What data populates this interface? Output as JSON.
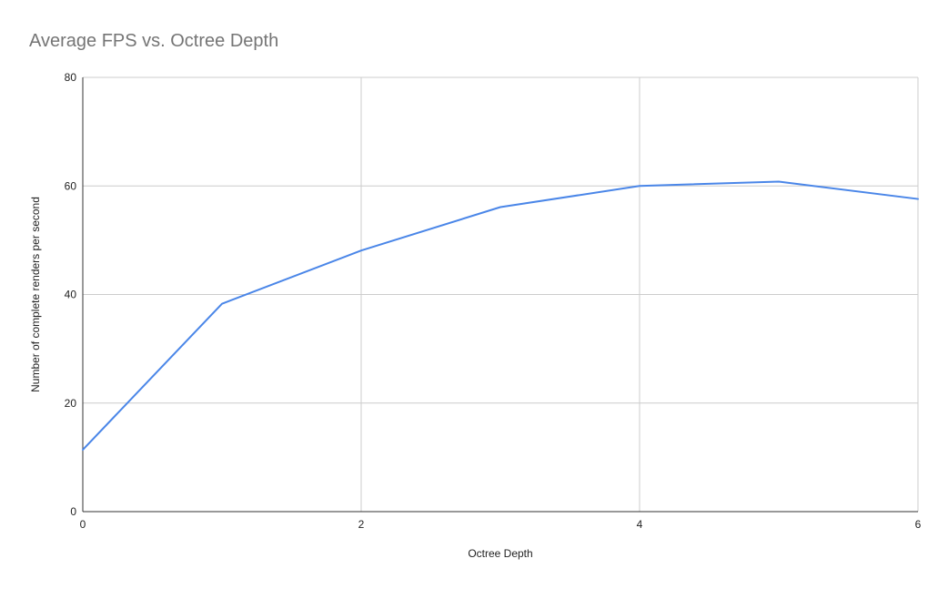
{
  "chart_data": {
    "type": "line",
    "title": "Average FPS vs. Octree Depth",
    "xlabel": "Octree Depth",
    "ylabel": "Number of complete renders per second",
    "x": [
      0,
      1,
      2,
      3,
      4,
      5,
      6
    ],
    "series": [
      {
        "values": [
          11.4,
          38.3,
          48.1,
          56.1,
          60.0,
          60.8,
          57.6
        ],
        "color": "#4a86e8"
      }
    ],
    "xlim": [
      0,
      6
    ],
    "ylim": [
      0,
      80
    ],
    "x_ticks": [
      0,
      2,
      4,
      6
    ],
    "y_ticks": [
      0,
      20,
      40,
      60,
      80
    ],
    "x_tick_labels": [
      "0",
      "2",
      "4",
      "6"
    ],
    "y_tick_labels": [
      "0",
      "20",
      "40",
      "60",
      "80"
    ],
    "grid": true,
    "legend": "none"
  }
}
